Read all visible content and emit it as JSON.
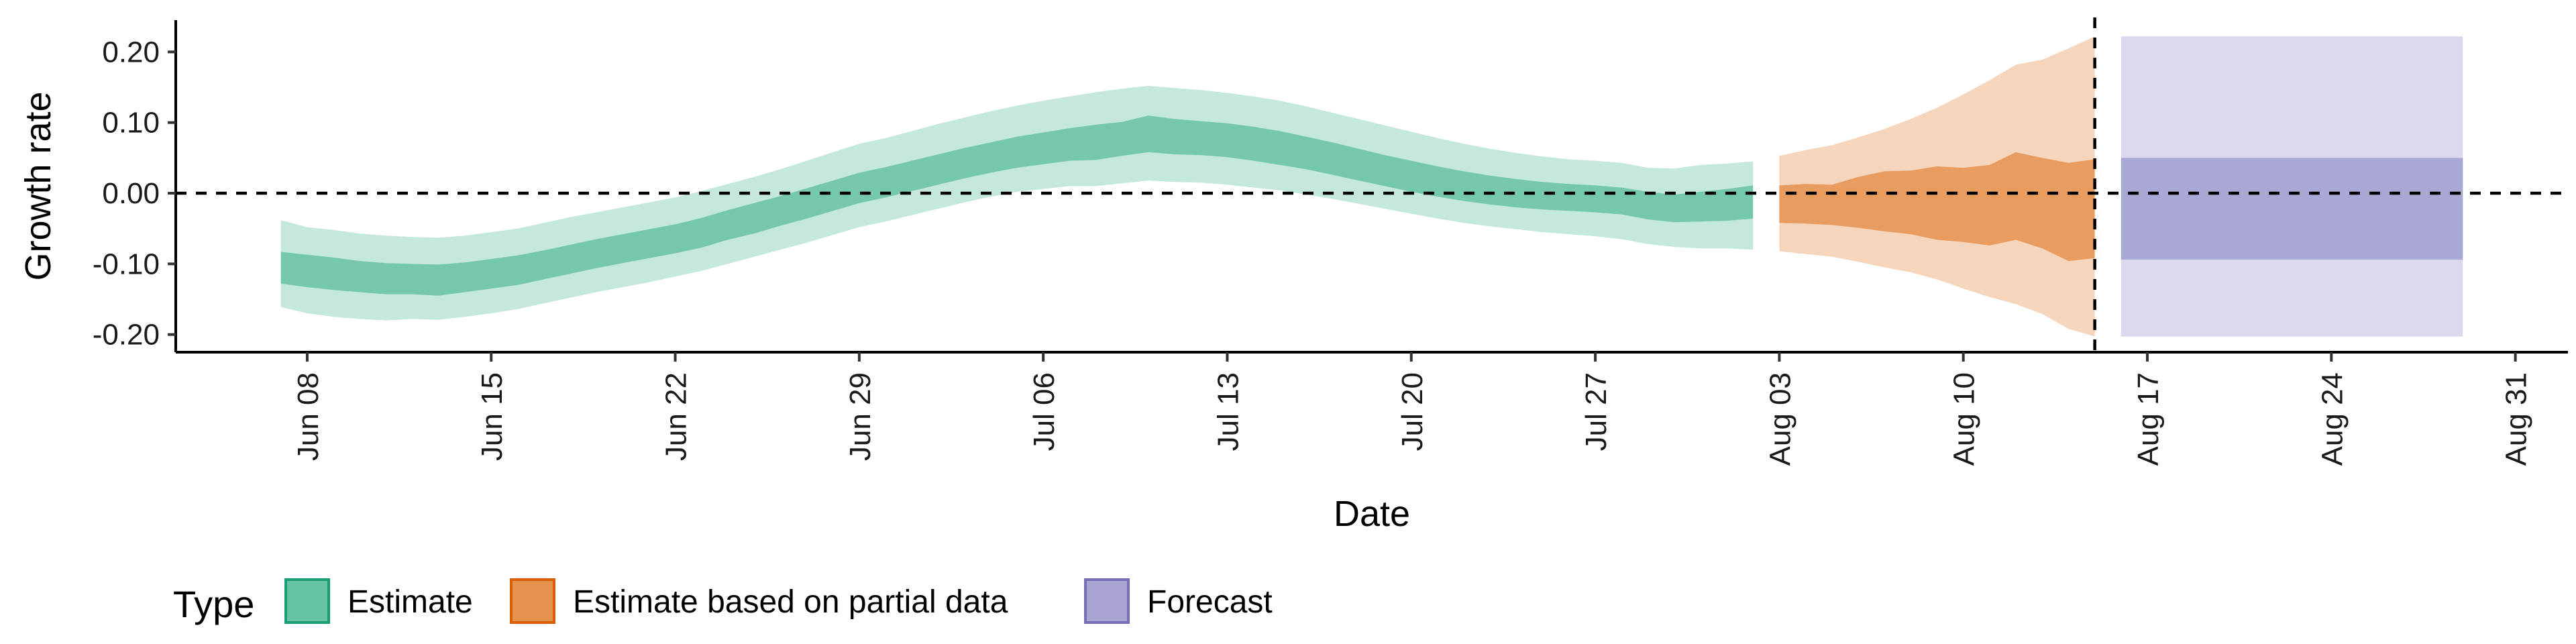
{
  "chart_data": {
    "type": "area",
    "title": "",
    "xlabel": "Date",
    "ylabel": "Growth rate",
    "x_range": [
      "2020-06-03",
      "2020-09-02"
    ],
    "ylim": [
      -0.225,
      0.245
    ],
    "x_ticks": [
      {
        "date": "2020-06-08",
        "label": "Jun 08"
      },
      {
        "date": "2020-06-15",
        "label": "Jun 15"
      },
      {
        "date": "2020-06-22",
        "label": "Jun 22"
      },
      {
        "date": "2020-06-29",
        "label": "Jun 29"
      },
      {
        "date": "2020-07-06",
        "label": "Jul 06"
      },
      {
        "date": "2020-07-13",
        "label": "Jul 13"
      },
      {
        "date": "2020-07-20",
        "label": "Jul 20"
      },
      {
        "date": "2020-07-27",
        "label": "Jul 27"
      },
      {
        "date": "2020-08-03",
        "label": "Aug 03"
      },
      {
        "date": "2020-08-10",
        "label": "Aug 10"
      },
      {
        "date": "2020-08-17",
        "label": "Aug 17"
      },
      {
        "date": "2020-08-24",
        "label": "Aug 24"
      },
      {
        "date": "2020-08-31",
        "label": "Aug 31"
      }
    ],
    "y_ticks": [
      {
        "value": 0.2,
        "label": "0.20"
      },
      {
        "value": 0.1,
        "label": "0.10"
      },
      {
        "value": 0.0,
        "label": "0.00"
      },
      {
        "value": -0.1,
        "label": "-0.10"
      },
      {
        "value": -0.2,
        "label": "-0.20"
      }
    ],
    "reference_lines": {
      "horizontal_y": 0.0,
      "vertical_date": "2020-08-15"
    },
    "legend": {
      "title": "Type",
      "position": "bottom"
    },
    "series": [
      {
        "name": "Estimate",
        "color": "#1b9e77",
        "fill_color": "#66c2a5",
        "data": [
          {
            "date": "2020-06-07",
            "o_lo": -0.161,
            "i_lo": -0.128,
            "i_hi": -0.083,
            "o_hi": -0.038
          },
          {
            "date": "2020-06-08",
            "o_lo": -0.17,
            "i_lo": -0.133,
            "i_hi": -0.087,
            "o_hi": -0.048
          },
          {
            "date": "2020-06-09",
            "o_lo": -0.175,
            "i_lo": -0.137,
            "i_hi": -0.091,
            "o_hi": -0.052
          },
          {
            "date": "2020-06-10",
            "o_lo": -0.178,
            "i_lo": -0.14,
            "i_hi": -0.096,
            "o_hi": -0.057
          },
          {
            "date": "2020-06-11",
            "o_lo": -0.18,
            "i_lo": -0.143,
            "i_hi": -0.099,
            "o_hi": -0.06
          },
          {
            "date": "2020-06-12",
            "o_lo": -0.178,
            "i_lo": -0.143,
            "i_hi": -0.1,
            "o_hi": -0.062
          },
          {
            "date": "2020-06-13",
            "o_lo": -0.179,
            "i_lo": -0.145,
            "i_hi": -0.101,
            "o_hi": -0.063
          },
          {
            "date": "2020-06-14",
            "o_lo": -0.175,
            "i_lo": -0.14,
            "i_hi": -0.098,
            "o_hi": -0.06
          },
          {
            "date": "2020-06-15",
            "o_lo": -0.17,
            "i_lo": -0.135,
            "i_hi": -0.093,
            "o_hi": -0.055
          },
          {
            "date": "2020-06-16",
            "o_lo": -0.164,
            "i_lo": -0.13,
            "i_hi": -0.088,
            "o_hi": -0.05
          },
          {
            "date": "2020-06-17",
            "o_lo": -0.156,
            "i_lo": -0.122,
            "i_hi": -0.081,
            "o_hi": -0.042
          },
          {
            "date": "2020-06-18",
            "o_lo": -0.148,
            "i_lo": -0.114,
            "i_hi": -0.073,
            "o_hi": -0.034
          },
          {
            "date": "2020-06-19",
            "o_lo": -0.14,
            "i_lo": -0.106,
            "i_hi": -0.065,
            "o_hi": -0.027
          },
          {
            "date": "2020-06-20",
            "o_lo": -0.133,
            "i_lo": -0.099,
            "i_hi": -0.058,
            "o_hi": -0.02
          },
          {
            "date": "2020-06-21",
            "o_lo": -0.126,
            "i_lo": -0.092,
            "i_hi": -0.051,
            "o_hi": -0.013
          },
          {
            "date": "2020-06-22",
            "o_lo": -0.118,
            "i_lo": -0.085,
            "i_hi": -0.044,
            "o_hi": -0.006
          },
          {
            "date": "2020-06-23",
            "o_lo": -0.11,
            "i_lo": -0.077,
            "i_hi": -0.035,
            "o_hi": 0.003
          },
          {
            "date": "2020-06-24",
            "o_lo": -0.1,
            "i_lo": -0.066,
            "i_hi": -0.024,
            "o_hi": 0.013
          },
          {
            "date": "2020-06-25",
            "o_lo": -0.09,
            "i_lo": -0.057,
            "i_hi": -0.014,
            "o_hi": 0.023
          },
          {
            "date": "2020-06-26",
            "o_lo": -0.08,
            "i_lo": -0.046,
            "i_hi": -0.004,
            "o_hi": 0.034
          },
          {
            "date": "2020-06-27",
            "o_lo": -0.07,
            "i_lo": -0.036,
            "i_hi": 0.007,
            "o_hi": 0.046
          },
          {
            "date": "2020-06-28",
            "o_lo": -0.059,
            "i_lo": -0.025,
            "i_hi": 0.018,
            "o_hi": 0.058
          },
          {
            "date": "2020-06-29",
            "o_lo": -0.048,
            "i_lo": -0.014,
            "i_hi": 0.029,
            "o_hi": 0.07
          },
          {
            "date": "2020-06-30",
            "o_lo": -0.04,
            "i_lo": -0.006,
            "i_hi": 0.037,
            "o_hi": 0.078
          },
          {
            "date": "2020-07-01",
            "o_lo": -0.031,
            "i_lo": 0.003,
            "i_hi": 0.046,
            "o_hi": 0.088
          },
          {
            "date": "2020-07-02",
            "o_lo": -0.022,
            "i_lo": 0.012,
            "i_hi": 0.055,
            "o_hi": 0.098
          },
          {
            "date": "2020-07-03",
            "o_lo": -0.013,
            "i_lo": 0.021,
            "i_hi": 0.064,
            "o_hi": 0.107
          },
          {
            "date": "2020-07-04",
            "o_lo": -0.005,
            "i_lo": 0.029,
            "i_hi": 0.072,
            "o_hi": 0.116
          },
          {
            "date": "2020-07-05",
            "o_lo": 0.002,
            "i_lo": 0.036,
            "i_hi": 0.08,
            "o_hi": 0.124
          },
          {
            "date": "2020-07-06",
            "o_lo": 0.006,
            "i_lo": 0.041,
            "i_hi": 0.086,
            "o_hi": 0.131
          },
          {
            "date": "2020-07-07",
            "o_lo": 0.01,
            "i_lo": 0.046,
            "i_hi": 0.092,
            "o_hi": 0.137
          },
          {
            "date": "2020-07-08",
            "o_lo": 0.01,
            "i_lo": 0.047,
            "i_hi": 0.097,
            "o_hi": 0.143
          },
          {
            "date": "2020-07-09",
            "o_lo": 0.014,
            "i_lo": 0.053,
            "i_hi": 0.101,
            "o_hi": 0.148
          },
          {
            "date": "2020-07-10",
            "o_lo": 0.018,
            "i_lo": 0.058,
            "i_hi": 0.11,
            "o_hi": 0.152
          },
          {
            "date": "2020-07-11",
            "o_lo": 0.016,
            "i_lo": 0.055,
            "i_hi": 0.105,
            "o_hi": 0.149
          },
          {
            "date": "2020-07-12",
            "o_lo": 0.015,
            "i_lo": 0.054,
            "i_hi": 0.102,
            "o_hi": 0.146
          },
          {
            "date": "2020-07-13",
            "o_lo": 0.012,
            "i_lo": 0.051,
            "i_hi": 0.099,
            "o_hi": 0.142
          },
          {
            "date": "2020-07-14",
            "o_lo": 0.008,
            "i_lo": 0.046,
            "i_hi": 0.094,
            "o_hi": 0.137
          },
          {
            "date": "2020-07-15",
            "o_lo": 0.004,
            "i_lo": 0.04,
            "i_hi": 0.088,
            "o_hi": 0.131
          },
          {
            "date": "2020-07-16",
            "o_lo": -0.002,
            "i_lo": 0.034,
            "i_hi": 0.08,
            "o_hi": 0.123
          },
          {
            "date": "2020-07-17",
            "o_lo": -0.008,
            "i_lo": 0.026,
            "i_hi": 0.072,
            "o_hi": 0.114
          },
          {
            "date": "2020-07-18",
            "o_lo": -0.015,
            "i_lo": 0.018,
            "i_hi": 0.063,
            "o_hi": 0.105
          },
          {
            "date": "2020-07-19",
            "o_lo": -0.022,
            "i_lo": 0.01,
            "i_hi": 0.054,
            "o_hi": 0.096
          },
          {
            "date": "2020-07-20",
            "o_lo": -0.029,
            "i_lo": 0.002,
            "i_hi": 0.046,
            "o_hi": 0.087
          },
          {
            "date": "2020-07-21",
            "o_lo": -0.036,
            "i_lo": -0.005,
            "i_hi": 0.038,
            "o_hi": 0.078
          },
          {
            "date": "2020-07-22",
            "o_lo": -0.042,
            "i_lo": -0.011,
            "i_hi": 0.031,
            "o_hi": 0.07
          },
          {
            "date": "2020-07-23",
            "o_lo": -0.047,
            "i_lo": -0.016,
            "i_hi": 0.025,
            "o_hi": 0.063
          },
          {
            "date": "2020-07-24",
            "o_lo": -0.051,
            "i_lo": -0.02,
            "i_hi": 0.02,
            "o_hi": 0.057
          },
          {
            "date": "2020-07-25",
            "o_lo": -0.055,
            "i_lo": -0.023,
            "i_hi": 0.016,
            "o_hi": 0.052
          },
          {
            "date": "2020-07-26",
            "o_lo": -0.058,
            "i_lo": -0.025,
            "i_hi": 0.013,
            "o_hi": 0.048
          },
          {
            "date": "2020-07-27",
            "o_lo": -0.061,
            "i_lo": -0.027,
            "i_hi": 0.011,
            "o_hi": 0.046
          },
          {
            "date": "2020-07-28",
            "o_lo": -0.065,
            "i_lo": -0.03,
            "i_hi": 0.008,
            "o_hi": 0.043
          },
          {
            "date": "2020-07-29",
            "o_lo": -0.072,
            "i_lo": -0.037,
            "i_hi": 0.002,
            "o_hi": 0.036
          },
          {
            "date": "2020-07-30",
            "o_lo": -0.076,
            "i_lo": -0.041,
            "i_hi": -0.002,
            "o_hi": 0.035
          },
          {
            "date": "2020-07-31",
            "o_lo": -0.078,
            "i_lo": -0.04,
            "i_hi": 0.002,
            "o_hi": 0.04
          },
          {
            "date": "2020-08-01",
            "o_lo": -0.078,
            "i_lo": -0.039,
            "i_hi": 0.006,
            "o_hi": 0.042
          },
          {
            "date": "2020-08-02",
            "o_lo": -0.08,
            "i_lo": -0.036,
            "i_hi": 0.011,
            "o_hi": 0.045
          }
        ]
      },
      {
        "name": "Estimate based on partial data",
        "color": "#d95f02",
        "fill_color": "#e6924f",
        "data": [
          {
            "date": "2020-08-03",
            "o_lo": -0.082,
            "i_lo": -0.042,
            "i_hi": 0.011,
            "o_hi": 0.053
          },
          {
            "date": "2020-08-04",
            "o_lo": -0.086,
            "i_lo": -0.043,
            "i_hi": 0.013,
            "o_hi": 0.061
          },
          {
            "date": "2020-08-05",
            "o_lo": -0.09,
            "i_lo": -0.045,
            "i_hi": 0.012,
            "o_hi": 0.068
          },
          {
            "date": "2020-08-06",
            "o_lo": -0.097,
            "i_lo": -0.049,
            "i_hi": 0.023,
            "o_hi": 0.079
          },
          {
            "date": "2020-08-07",
            "o_lo": -0.105,
            "i_lo": -0.054,
            "i_hi": 0.031,
            "o_hi": 0.091
          },
          {
            "date": "2020-08-08",
            "o_lo": -0.112,
            "i_lo": -0.058,
            "i_hi": 0.032,
            "o_hi": 0.105
          },
          {
            "date": "2020-08-09",
            "o_lo": -0.122,
            "i_lo": -0.066,
            "i_hi": 0.038,
            "o_hi": 0.121
          },
          {
            "date": "2020-08-10",
            "o_lo": -0.135,
            "i_lo": -0.069,
            "i_hi": 0.036,
            "o_hi": 0.14
          },
          {
            "date": "2020-08-11",
            "o_lo": -0.147,
            "i_lo": -0.074,
            "i_hi": 0.04,
            "o_hi": 0.16
          },
          {
            "date": "2020-08-12",
            "o_lo": -0.157,
            "i_lo": -0.066,
            "i_hi": 0.058,
            "o_hi": 0.182
          },
          {
            "date": "2020-08-13",
            "o_lo": -0.171,
            "i_lo": -0.078,
            "i_hi": 0.05,
            "o_hi": 0.189
          },
          {
            "date": "2020-08-14",
            "o_lo": -0.192,
            "i_lo": -0.096,
            "i_hi": 0.043,
            "o_hi": 0.205
          },
          {
            "date": "2020-08-15",
            "o_lo": -0.203,
            "i_lo": -0.092,
            "i_hi": 0.048,
            "o_hi": 0.222
          }
        ]
      },
      {
        "name": "Forecast",
        "color": "#7570b3",
        "fill_color": "#a8a5d3",
        "data": [
          {
            "date": "2020-08-16",
            "o_lo": -0.203,
            "i_lo": -0.094,
            "i_hi": 0.05,
            "o_hi": 0.222
          },
          {
            "date": "2020-08-29",
            "o_lo": -0.203,
            "i_lo": -0.094,
            "i_hi": 0.05,
            "o_hi": 0.222
          }
        ]
      }
    ]
  }
}
